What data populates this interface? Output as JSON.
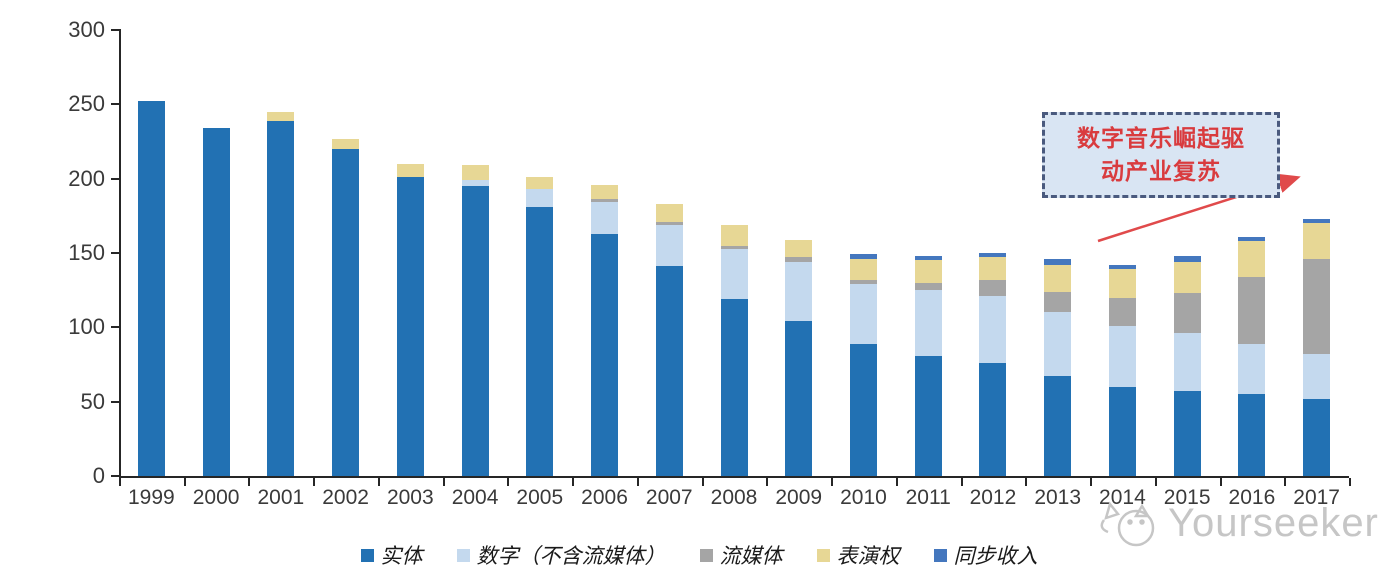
{
  "chart_data": {
    "type": "bar",
    "stacked": true,
    "title": "",
    "xlabel": "",
    "ylabel": "",
    "ylim": [
      0,
      300
    ],
    "yticks": [
      0,
      50,
      100,
      150,
      200,
      250,
      300
    ],
    "grid": false,
    "legend_position": "bottom",
    "categories": [
      "1999",
      "2000",
      "2001",
      "2002",
      "2003",
      "2004",
      "2005",
      "2006",
      "2007",
      "2008",
      "2009",
      "2010",
      "2011",
      "2012",
      "2013",
      "2014",
      "2015",
      "2016",
      "2017"
    ],
    "series": [
      {
        "name": "实体",
        "color": "#2271B3",
        "values": [
          252,
          234,
          239,
          220,
          201,
          195,
          181,
          163,
          141,
          119,
          104,
          89,
          81,
          76,
          67,
          60,
          57,
          55,
          52
        ]
      },
      {
        "name": "数字（不含流媒体）",
        "color": "#C4D9EE",
        "values": [
          0,
          0,
          0,
          0,
          0,
          4,
          12,
          21,
          28,
          34,
          40,
          40,
          44,
          45,
          43,
          41,
          39,
          34,
          30
        ]
      },
      {
        "name": "流媒体",
        "color": "#A5A5A5",
        "values": [
          0,
          0,
          0,
          0,
          0,
          0,
          0,
          2,
          2,
          2,
          3,
          3,
          5,
          11,
          14,
          19,
          27,
          45,
          64
        ]
      },
      {
        "name": "表演权",
        "color": "#E7D795",
        "values": [
          0,
          0,
          6,
          7,
          9,
          10,
          8,
          10,
          12,
          14,
          12,
          14,
          15,
          15,
          18,
          19,
          21,
          24,
          24
        ]
      },
      {
        "name": "同步收入",
        "color": "#4477BE",
        "values": [
          0,
          0,
          0,
          0,
          0,
          0,
          0,
          0,
          0,
          0,
          0,
          3,
          3,
          3,
          4,
          3,
          4,
          3,
          3
        ]
      }
    ]
  },
  "annotation": {
    "line1": "数字音乐崛起驱",
    "line2": "动产业复苏",
    "text_color": "#d93b3e",
    "fill_color": "#d9e5f3",
    "border_color": "#4a5a7e",
    "arrow_color": "#e04a4b"
  },
  "watermark": {
    "text": "Yourseeker",
    "color": "#c6c6c6",
    "logo": "cat-logo-icon"
  },
  "axes": {
    "axis_color": "#262626",
    "label_color": "#3a3a3a"
  }
}
